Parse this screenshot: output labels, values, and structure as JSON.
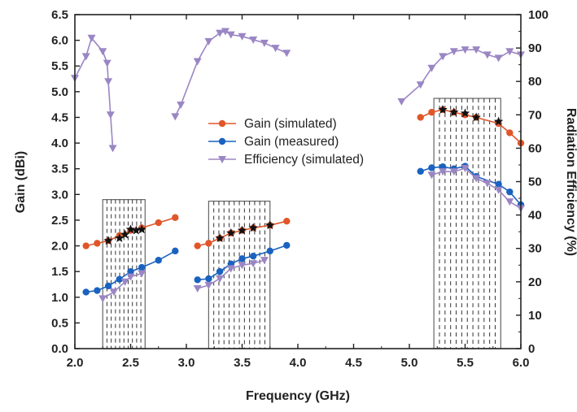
{
  "chart_data": {
    "type": "line",
    "xlabel": "Frequency (GHz)",
    "ylabel": "Gain (dBi)",
    "y2label": "Radiation Efficiency (%)",
    "xlim": [
      2.0,
      6.0
    ],
    "ylim": [
      0.0,
      6.5
    ],
    "y2lim": [
      0,
      100
    ],
    "x_ticks": [
      "2.0",
      "2.5",
      "3.0",
      "3.5",
      "4.0",
      "4.5",
      "5.0",
      "5.5",
      "6.0"
    ],
    "y_ticks": [
      "0.0",
      "0.5",
      "1.0",
      "1.5",
      "2.0",
      "2.5",
      "3.0",
      "3.5",
      "4.0",
      "4.5",
      "5.0",
      "5.5",
      "6.0",
      "6.5"
    ],
    "y2_ticks": [
      "0",
      "10",
      "20",
      "30",
      "40",
      "50",
      "60",
      "70",
      "80",
      "90",
      "100"
    ],
    "grid": false,
    "legend_position": "center",
    "colors": {
      "gain_simulated": "#e0562a",
      "gain_measured": "#1a62c0",
      "efficiency_simulated": "#9b86c4",
      "star": "#111111",
      "band_box": "#666666"
    },
    "series": [
      {
        "name": "Gain (simulated)",
        "axis": "left",
        "segments": [
          [
            [
              2.1,
              2.0
            ],
            [
              2.2,
              2.05
            ],
            [
              2.3,
              2.1
            ],
            [
              2.4,
              2.2
            ],
            [
              2.5,
              2.3
            ],
            [
              2.6,
              2.35
            ],
            [
              2.75,
              2.45
            ],
            [
              2.9,
              2.55
            ]
          ],
          [
            [
              3.1,
              2.0
            ],
            [
              3.2,
              2.05
            ],
            [
              3.3,
              2.15
            ],
            [
              3.4,
              2.25
            ],
            [
              3.5,
              2.3
            ],
            [
              3.6,
              2.35
            ],
            [
              3.75,
              2.4
            ],
            [
              3.9,
              2.48
            ]
          ],
          [
            [
              5.1,
              4.5
            ],
            [
              5.2,
              4.6
            ],
            [
              5.3,
              4.65
            ],
            [
              5.4,
              4.6
            ],
            [
              5.5,
              4.55
            ],
            [
              5.6,
              4.5
            ],
            [
              5.8,
              4.38
            ],
            [
              5.9,
              4.2
            ],
            [
              6.0,
              4.0
            ]
          ]
        ]
      },
      {
        "name": "Gain (measured)",
        "axis": "left",
        "segments": [
          [
            [
              2.1,
              1.1
            ],
            [
              2.2,
              1.13
            ],
            [
              2.3,
              1.22
            ],
            [
              2.4,
              1.35
            ],
            [
              2.5,
              1.5
            ],
            [
              2.6,
              1.58
            ],
            [
              2.75,
              1.72
            ],
            [
              2.9,
              1.9
            ]
          ],
          [
            [
              3.1,
              1.34
            ],
            [
              3.2,
              1.36
            ],
            [
              3.3,
              1.5
            ],
            [
              3.4,
              1.65
            ],
            [
              3.5,
              1.75
            ],
            [
              3.6,
              1.8
            ],
            [
              3.75,
              1.9
            ],
            [
              3.9,
              2.01
            ]
          ],
          [
            [
              5.1,
              3.45
            ],
            [
              5.2,
              3.52
            ],
            [
              5.3,
              3.54
            ],
            [
              5.4,
              3.5
            ],
            [
              5.5,
              3.55
            ],
            [
              5.6,
              3.35
            ],
            [
              5.8,
              3.2
            ],
            [
              5.9,
              3.05
            ],
            [
              6.0,
              2.8
            ]
          ]
        ]
      },
      {
        "name": "Efficiency (simulated)",
        "axis": "right",
        "segments": [
          [
            [
              2.0,
              81
            ],
            [
              2.1,
              87.5
            ],
            [
              2.15,
              93
            ],
            [
              2.25,
              89
            ],
            [
              2.29,
              85.5
            ],
            [
              2.3,
              80
            ],
            [
              2.32,
              70
            ],
            [
              2.34,
              60
            ]
          ],
          [
            [
              2.25,
              15
            ],
            [
              2.35,
              17
            ],
            [
              2.45,
              20
            ],
            [
              2.5,
              21.5
            ],
            [
              2.6,
              22.5
            ]
          ],
          [
            [
              2.9,
              69.5
            ],
            [
              2.95,
              73
            ],
            [
              3.1,
              86
            ],
            [
              3.2,
              92
            ],
            [
              3.3,
              94.5
            ],
            [
              3.35,
              95
            ],
            [
              3.4,
              94
            ],
            [
              3.5,
              93.5
            ],
            [
              3.6,
              92.5
            ],
            [
              3.7,
              91.5
            ],
            [
              3.8,
              90
            ],
            [
              3.9,
              88.5
            ]
          ],
          [
            [
              3.1,
              18
            ],
            [
              3.2,
              19
            ],
            [
              3.3,
              21
            ],
            [
              3.4,
              24
            ],
            [
              3.5,
              25
            ],
            [
              3.6,
              25.5
            ],
            [
              3.7,
              26.5
            ]
          ],
          [
            [
              4.93,
              74
            ],
            [
              5.1,
              79
            ],
            [
              5.2,
              84
            ],
            [
              5.3,
              87.5
            ],
            [
              5.4,
              89
            ],
            [
              5.5,
              89.5
            ],
            [
              5.6,
              89.5
            ],
            [
              5.7,
              88
            ],
            [
              5.8,
              87
            ],
            [
              5.9,
              89
            ],
            [
              6.0,
              88
            ]
          ],
          [
            [
              5.2,
              52
            ],
            [
              5.3,
              53
            ],
            [
              5.4,
              53
            ],
            [
              5.5,
              54
            ],
            [
              5.6,
              51
            ],
            [
              5.7,
              49.5
            ],
            [
              5.8,
              47.5
            ],
            [
              5.9,
              44
            ],
            [
              6.0,
              42
            ]
          ]
        ]
      }
    ],
    "star_points": [
      [
        2.3,
        2.1
      ],
      [
        2.4,
        2.15
      ],
      [
        2.45,
        2.22
      ],
      [
        2.5,
        2.32
      ],
      [
        2.55,
        2.3
      ],
      [
        2.6,
        2.32
      ],
      [
        3.3,
        2.15
      ],
      [
        3.4,
        2.25
      ],
      [
        3.5,
        2.3
      ],
      [
        3.6,
        2.35
      ],
      [
        3.75,
        2.4
      ],
      [
        5.3,
        4.65
      ],
      [
        5.4,
        4.6
      ],
      [
        5.5,
        4.58
      ],
      [
        5.6,
        4.5
      ],
      [
        5.8,
        4.42
      ]
    ],
    "bands": [
      {
        "x": [
          2.25,
          2.63
        ],
        "y": [
          0.0,
          2.9
        ],
        "dashed_lines": 9
      },
      {
        "x": [
          3.2,
          3.75
        ],
        "y": [
          0.0,
          2.87
        ],
        "dashed_lines": 11
      },
      {
        "x": [
          5.22,
          5.82
        ],
        "y": [
          0.0,
          4.87
        ],
        "dashed_lines": 11
      }
    ]
  }
}
